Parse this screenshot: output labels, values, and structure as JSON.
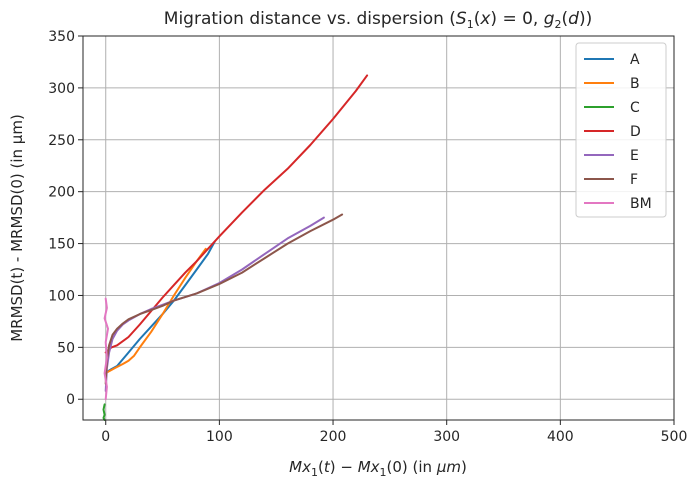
{
  "chart_data": {
    "type": "line",
    "title": "Migration distance vs. dispersion (S₁(x) = 0, g₂(d))",
    "xlabel": "Mx₁(t) − Mx₁(0)  (in μm)",
    "ylabel": "MRMSD(t) - MRMSD(0) (in μm)",
    "xlim": [
      -20,
      500
    ],
    "ylim": [
      -20,
      350
    ],
    "xticks": [
      "0",
      "100",
      "200",
      "300",
      "400",
      "500"
    ],
    "yticks": [
      "0",
      "50",
      "100",
      "150",
      "200",
      "250",
      "300",
      "350"
    ],
    "grid": true,
    "legend_position": "top-right",
    "series": [
      {
        "name": "A",
        "color": "#1f77b4",
        "x": [
          0,
          2,
          5,
          10,
          20,
          30,
          40,
          50,
          60,
          70,
          80,
          90,
          96
        ],
        "y": [
          25,
          27,
          29,
          32,
          45,
          58,
          70,
          82,
          95,
          110,
          125,
          140,
          152
        ]
      },
      {
        "name": "B",
        "color": "#ff7f0e",
        "x": [
          0,
          3,
          8,
          15,
          20,
          25,
          30,
          40,
          50,
          60,
          70,
          80,
          88
        ],
        "y": [
          25,
          27,
          30,
          34,
          37,
          42,
          50,
          65,
          82,
          100,
          117,
          133,
          145
        ]
      },
      {
        "name": "C",
        "color": "#2ca02c",
        "x": [
          -1,
          -2,
          -1,
          -2,
          -1
        ],
        "y": [
          -5,
          -10,
          -15,
          -18,
          -20
        ]
      },
      {
        "name": "D",
        "color": "#d62728",
        "x": [
          0,
          5,
          10,
          20,
          30,
          40,
          50,
          60,
          70,
          80,
          90,
          100,
          120,
          140,
          160,
          180,
          200,
          220,
          230
        ],
        "y": [
          45,
          50,
          52,
          60,
          72,
          85,
          98,
          110,
          122,
          133,
          145,
          157,
          180,
          202,
          222,
          245,
          270,
          297,
          312
        ]
      },
      {
        "name": "E",
        "color": "#9467bd",
        "x": [
          0,
          1,
          3,
          6,
          10,
          15,
          20,
          30,
          40,
          50,
          60,
          80,
          100,
          120,
          140,
          160,
          180,
          192
        ],
        "y": [
          8,
          30,
          45,
          58,
          66,
          72,
          76,
          82,
          87,
          91,
          95,
          102,
          112,
          125,
          140,
          155,
          167,
          175
        ]
      },
      {
        "name": "F",
        "color": "#8c564b",
        "x": [
          0,
          1,
          3,
          6,
          10,
          15,
          20,
          30,
          40,
          50,
          60,
          80,
          100,
          120,
          140,
          160,
          180,
          200,
          208
        ],
        "y": [
          15,
          38,
          52,
          62,
          68,
          73,
          77,
          82,
          86,
          90,
          95,
          102,
          111,
          122,
          136,
          150,
          162,
          173,
          178
        ]
      },
      {
        "name": "BM",
        "color": "#e377c2",
        "x": [
          0,
          1,
          -1,
          1,
          0,
          2,
          -1,
          1,
          0
        ],
        "y": [
          0,
          12,
          25,
          40,
          55,
          68,
          78,
          88,
          97
        ]
      }
    ]
  }
}
